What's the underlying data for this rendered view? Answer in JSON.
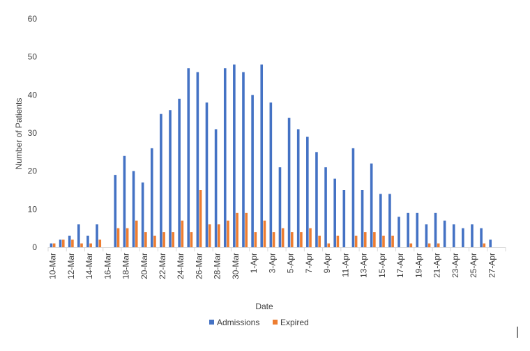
{
  "chart_data": {
    "type": "bar",
    "title": "",
    "xlabel": "Date",
    "ylabel": "Number of Patients",
    "ylim": [
      0,
      60
    ],
    "yticks": [
      0,
      10,
      20,
      30,
      40,
      50,
      60
    ],
    "grid": false,
    "legend_position": "bottom",
    "categories": [
      "10-Mar",
      "11-Mar",
      "12-Mar",
      "13-Mar",
      "14-Mar",
      "15-Mar",
      "16-Mar",
      "17-Mar",
      "18-Mar",
      "19-Mar",
      "20-Mar",
      "21-Mar",
      "22-Mar",
      "23-Mar",
      "24-Mar",
      "25-Mar",
      "26-Mar",
      "27-Mar",
      "28-Mar",
      "29-Mar",
      "30-Mar",
      "31-Mar",
      "1-Apr",
      "2-Apr",
      "3-Apr",
      "4-Apr",
      "5-Apr",
      "6-Apr",
      "7-Apr",
      "8-Apr",
      "9-Apr",
      "10-Apr",
      "11-Apr",
      "12-Apr",
      "13-Apr",
      "14-Apr",
      "15-Apr",
      "16-Apr",
      "17-Apr",
      "18-Apr",
      "19-Apr",
      "20-Apr",
      "21-Apr",
      "22-Apr",
      "23-Apr",
      "24-Apr",
      "25-Apr",
      "26-Apr",
      "27-Apr",
      "28-Apr"
    ],
    "tick_labels": [
      "10-Mar",
      "12-Mar",
      "14-Mar",
      "16-Mar",
      "18-Mar",
      "20-Mar",
      "22-Mar",
      "24-Mar",
      "26-Mar",
      "28-Mar",
      "30-Mar",
      "1-Apr",
      "3-Apr",
      "5-Apr",
      "7-Apr",
      "9-Apr",
      "11-Apr",
      "13-Apr",
      "15-Apr",
      "17-Apr",
      "19-Apr",
      "21-Apr",
      "23-Apr",
      "25-Apr",
      "27-Apr"
    ],
    "series": [
      {
        "name": "Admissions",
        "color": "#4472C4",
        "values": [
          1,
          2,
          3,
          6,
          3,
          6,
          0,
          19,
          24,
          20,
          17,
          26,
          35,
          36,
          39,
          47,
          46,
          38,
          31,
          47,
          48,
          46,
          40,
          48,
          38,
          21,
          34,
          31,
          29,
          25,
          21,
          18,
          15,
          26,
          15,
          22,
          14,
          14,
          8,
          9,
          9,
          6,
          9,
          7,
          6,
          5,
          6,
          5,
          2,
          0
        ]
      },
      {
        "name": "Expired",
        "color": "#ED7D31",
        "values": [
          1,
          2,
          2,
          1,
          1,
          2,
          0,
          5,
          5,
          7,
          4,
          3,
          4,
          4,
          7,
          4,
          15,
          6,
          6,
          7,
          9,
          9,
          4,
          7,
          4,
          5,
          4,
          4,
          5,
          3,
          1,
          3,
          0,
          3,
          4,
          4,
          3,
          3,
          0,
          1,
          0,
          1,
          1,
          0,
          0,
          0,
          0,
          1,
          0,
          0
        ]
      }
    ]
  }
}
